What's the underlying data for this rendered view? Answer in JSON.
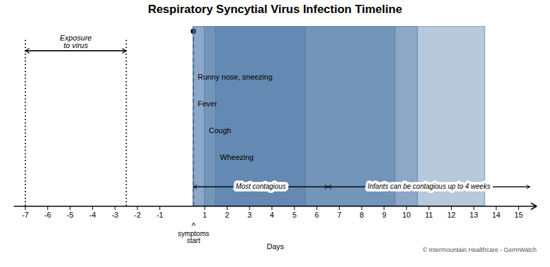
{
  "chart_data": {
    "type": "timeline",
    "title": "Respiratory Syncytial Virus Infection Timeline",
    "xlabel": "Days",
    "orientation": "horizontal",
    "tick_labels": "x",
    "grid": false,
    "categories": [
      "Runny nose, sneezing",
      "Fever",
      "Cough",
      "Wheezing"
    ],
    "starts": [
      0.5,
      0.5,
      1.0,
      1.5
    ],
    "ends": [
      9.5,
      5.5,
      13.5,
      10.5
    ],
    "xlim": [
      -7.5,
      15.8
    ],
    "xticks": [
      -7,
      -6,
      -5,
      -4,
      -3,
      -2,
      -1,
      1,
      2,
      3,
      4,
      5,
      6,
      7,
      8,
      9,
      10,
      11,
      12,
      13,
      14,
      15
    ],
    "exposure": {
      "label": "Exposure\nto virus",
      "start": -7,
      "end": -2.5
    },
    "contagious": [
      {
        "label": "Most contagious",
        "start": 0.5,
        "end": 6.5
      },
      {
        "label": "Infants can be contagious up to 4 weeks",
        "start": 6.5,
        "end": 15.5
      }
    ],
    "symptoms_start": {
      "x": 0.5,
      "pointer": "^",
      "label": "symptoms\nstart"
    },
    "copyright": "© Intermountain Healthcare - GermWatch"
  }
}
